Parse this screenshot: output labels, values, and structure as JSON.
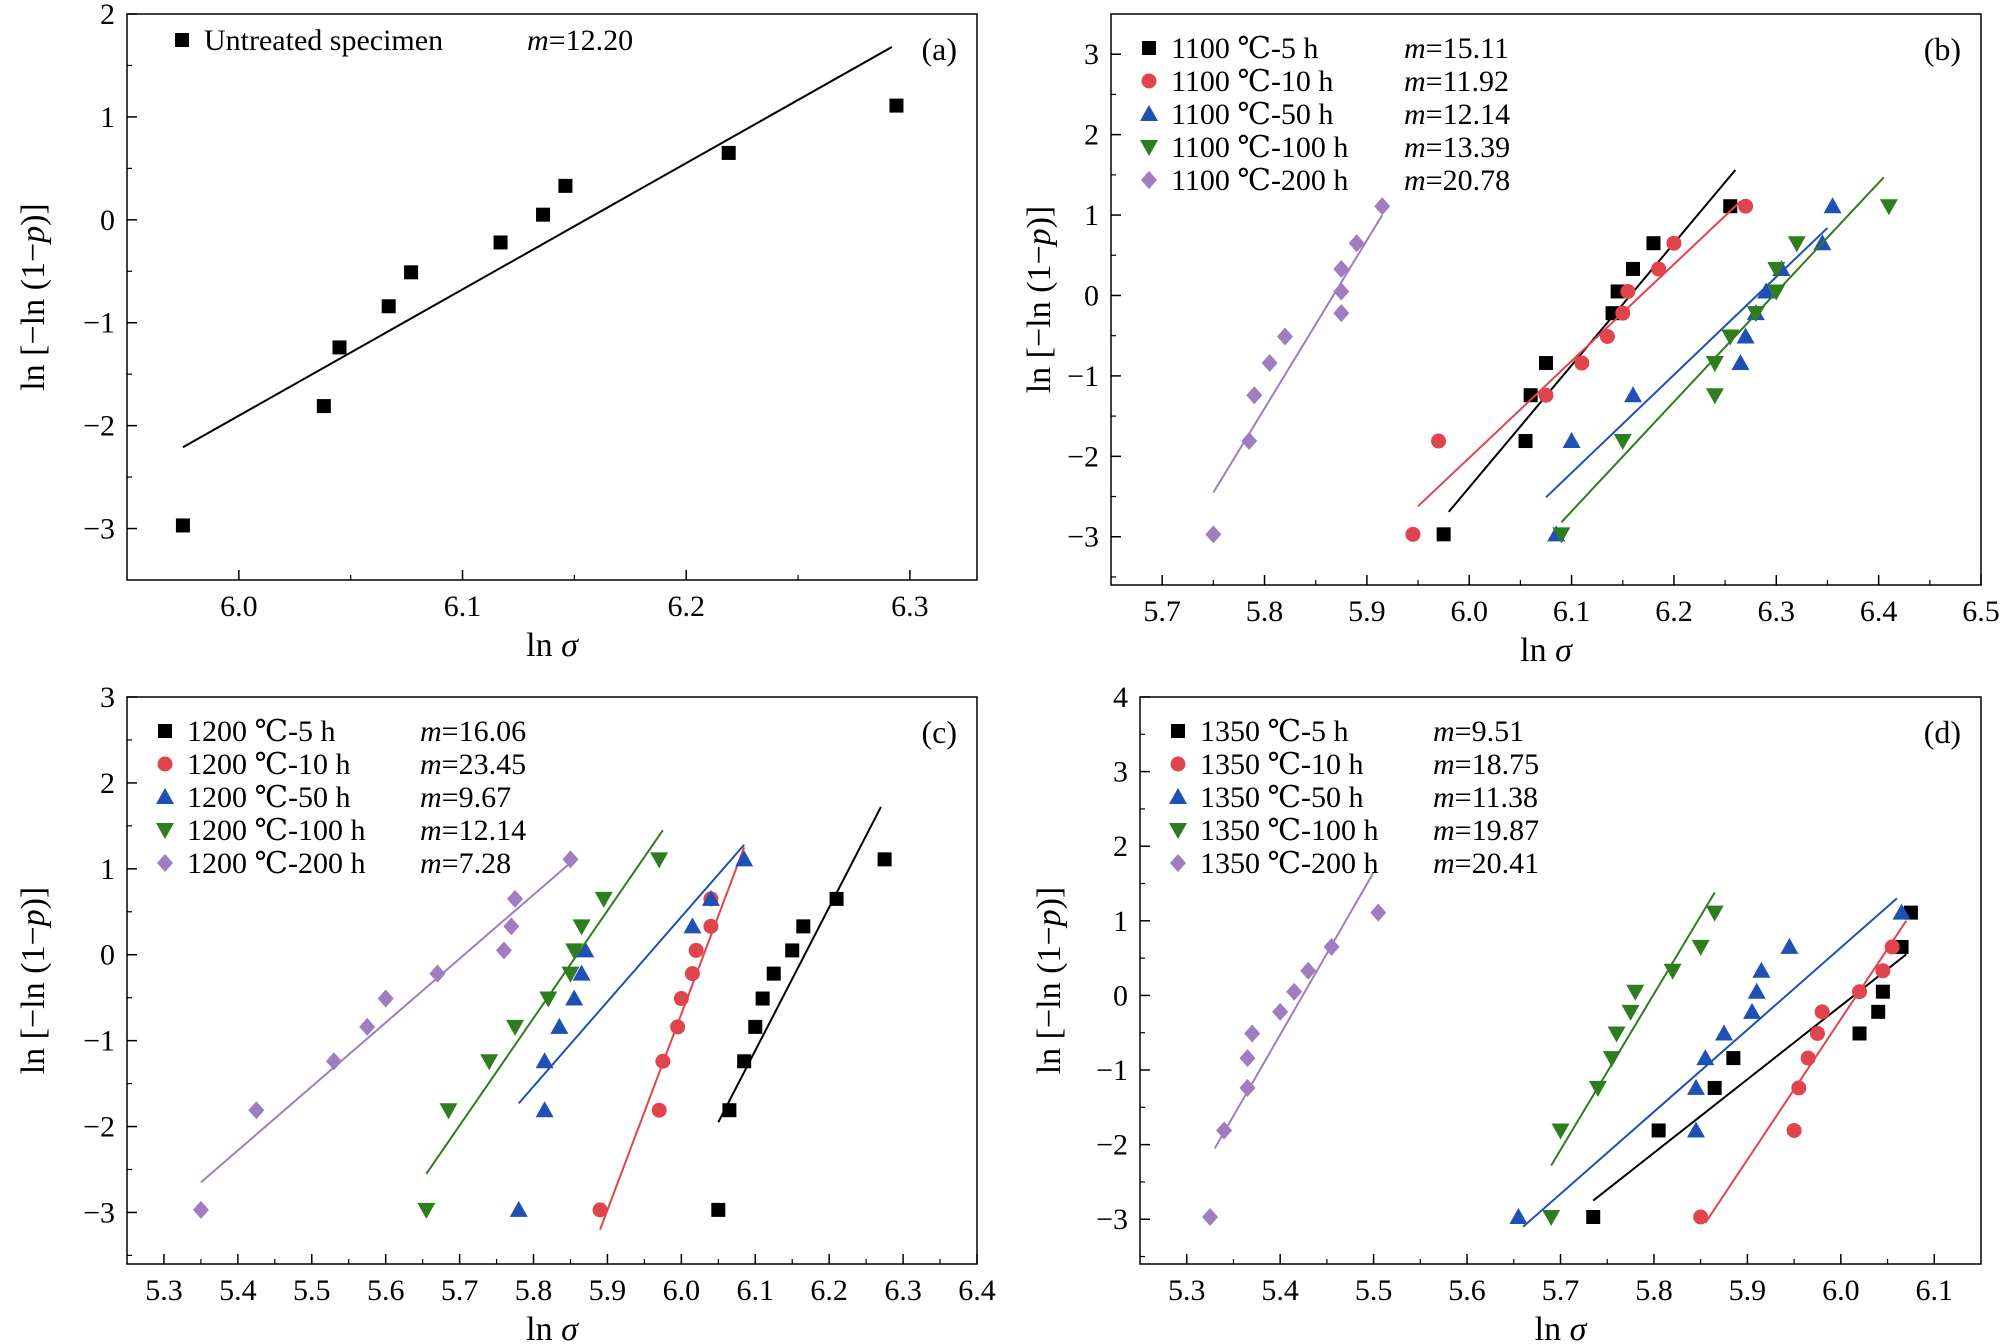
{
  "chart_data": [
    {
      "panel": "(a)",
      "type": "scatter",
      "xlabel": "ln σ",
      "ylabel": "ln [−ln (1−p)]",
      "xlim": [
        5.95,
        6.33
      ],
      "ylim": [
        -3.5,
        2
      ],
      "xticks": [
        "6.0",
        "6.1",
        "6.2",
        "6.3"
      ],
      "xtick_values": [
        6.0,
        6.1,
        6.2,
        6.3
      ],
      "yticks": [
        "−3",
        "−2",
        "−1",
        "0",
        "1",
        "2"
      ],
      "ytick_values": [
        -3,
        -2,
        -1,
        0,
        1,
        2
      ],
      "legend_position": "top-left",
      "series": [
        {
          "name": "Untreated specimen",
          "m_label": "m",
          "m_value": "=12.20",
          "color": "#000000",
          "marker": "square",
          "x": [
            5.975,
            6.038,
            6.045,
            6.067,
            6.077,
            6.117,
            6.136,
            6.146,
            6.219,
            6.294
          ],
          "y": [
            -2.97,
            -1.81,
            -1.24,
            -0.84,
            -0.51,
            -0.22,
            0.05,
            0.33,
            0.65,
            1.11
          ],
          "fit": [
            [
              5.975,
              -2.21
            ],
            [
              6.292,
              1.68
            ]
          ]
        }
      ]
    },
    {
      "panel": "(b)",
      "type": "scatter",
      "xlabel": "ln σ",
      "ylabel": "ln [−ln (1−p)]",
      "xlim": [
        5.65,
        6.5
      ],
      "ylim": [
        -3.6,
        3.5
      ],
      "xticks": [
        "5.7",
        "5.8",
        "5.9",
        "6.0",
        "6.1",
        "6.2",
        "6.3",
        "6.4",
        "6.5"
      ],
      "xtick_values": [
        5.7,
        5.8,
        5.9,
        6.0,
        6.1,
        6.2,
        6.3,
        6.4,
        6.5
      ],
      "yticks": [
        "−3",
        "−2",
        "−1",
        "0",
        "1",
        "2",
        "3"
      ],
      "ytick_values": [
        -3,
        -2,
        -1,
        0,
        1,
        2,
        3
      ],
      "legend_position": "top-left",
      "series": [
        {
          "name": "1100 ℃-5 h",
          "m_label": "m",
          "m_value": "=15.11",
          "color": "#000000",
          "marker": "square",
          "x": [
            5.975,
            6.055,
            6.06,
            6.075,
            6.14,
            6.145,
            6.16,
            6.18,
            6.255
          ],
          "y": [
            -2.97,
            -1.81,
            -1.24,
            -0.84,
            -0.22,
            0.05,
            0.33,
            0.65,
            1.11
          ],
          "fit": [
            [
              5.98,
              -2.69
            ],
            [
              6.26,
              1.56
            ]
          ]
        },
        {
          "name": "1100 ℃-10 h",
          "m_label": "m",
          "m_value": "=11.92",
          "color": "#e0444c",
          "marker": "circle",
          "x": [
            5.945,
            5.97,
            6.075,
            6.11,
            6.135,
            6.15,
            6.155,
            6.185,
            6.2,
            6.27
          ],
          "y": [
            -2.97,
            -1.81,
            -1.24,
            -0.84,
            -0.51,
            -0.22,
            0.05,
            0.33,
            0.65,
            1.11
          ],
          "fit": [
            [
              5.95,
              -2.62
            ],
            [
              6.265,
              1.17
            ]
          ]
        },
        {
          "name": "1100 ℃-50 h",
          "m_label": "m",
          "m_value": "=12.14",
          "color": "#1f50b4",
          "marker": "triangle-up",
          "x": [
            6.085,
            6.1,
            6.16,
            6.265,
            6.27,
            6.28,
            6.29,
            6.305,
            6.345,
            6.355
          ],
          "y": [
            -2.97,
            -1.81,
            -1.24,
            -0.84,
            -0.51,
            -0.22,
            0.05,
            0.33,
            0.65,
            1.11
          ],
          "fit": [
            [
              6.075,
              -2.51
            ],
            [
              6.35,
              0.84
            ]
          ]
        },
        {
          "name": "1100 ℃-100 h",
          "m_label": "m",
          "m_value": "=13.39",
          "color": "#2e7d1f",
          "marker": "triangle-down",
          "x": [
            6.09,
            6.15,
            6.24,
            6.24,
            6.255,
            6.28,
            6.3,
            6.3,
            6.32,
            6.41
          ],
          "y": [
            -2.97,
            -1.81,
            -1.24,
            -0.84,
            -0.51,
            -0.22,
            0.05,
            0.33,
            0.65,
            1.11
          ],
          "fit": [
            [
              6.09,
              -2.82
            ],
            [
              6.405,
              1.47
            ]
          ]
        },
        {
          "name": "1100 ℃-200 h",
          "m_label": "m",
          "m_value": "=20.78",
          "color": "#a07cc0",
          "marker": "diamond",
          "x": [
            5.75,
            5.785,
            5.79,
            5.805,
            5.82,
            5.875,
            5.875,
            5.875,
            5.89,
            5.915
          ],
          "y": [
            -2.97,
            -1.81,
            -1.24,
            -0.84,
            -0.51,
            -0.22,
            0.05,
            0.33,
            0.65,
            1.11
          ],
          "fit": [
            [
              5.75,
              -2.45
            ],
            [
              5.915,
              1.0
            ]
          ]
        }
      ]
    },
    {
      "panel": "(c)",
      "type": "scatter",
      "xlabel": "ln σ",
      "ylabel": "ln [−ln (1−p)]",
      "xlim": [
        5.25,
        6.4
      ],
      "ylim": [
        -3.6,
        3
      ],
      "xticks": [
        "5.3",
        "5.4",
        "5.5",
        "5.6",
        "5.7",
        "5.8",
        "5.9",
        "6.0",
        "6.1",
        "6.2",
        "6.3",
        "6.4"
      ],
      "xtick_values": [
        5.3,
        5.4,
        5.5,
        5.6,
        5.7,
        5.8,
        5.9,
        6.0,
        6.1,
        6.2,
        6.3,
        6.4
      ],
      "yticks": [
        "−3",
        "−2",
        "−1",
        "0",
        "1",
        "2",
        "3"
      ],
      "ytick_values": [
        -3,
        -2,
        -1,
        0,
        1,
        2,
        3
      ],
      "legend_position": "top-left",
      "series": [
        {
          "name": "1200 ℃-5 h",
          "m_label": "m",
          "m_value": "=16.06",
          "color": "#000000",
          "marker": "square",
          "x": [
            6.05,
            6.065,
            6.085,
            6.1,
            6.11,
            6.125,
            6.15,
            6.165,
            6.21,
            6.275
          ],
          "y": [
            -2.97,
            -1.81,
            -1.24,
            -0.84,
            -0.51,
            -0.22,
            0.05,
            0.33,
            0.65,
            1.11
          ],
          "fit": [
            [
              6.05,
              -1.95
            ],
            [
              6.27,
              1.72
            ]
          ]
        },
        {
          "name": "1200 ℃-10 h",
          "m_label": "m",
          "m_value": "=23.45",
          "color": "#e0444c",
          "marker": "circle",
          "x": [
            5.89,
            5.97,
            5.975,
            5.995,
            6.0,
            6.015,
            6.02,
            6.04,
            6.04
          ],
          "y": [
            -2.97,
            -1.81,
            -1.24,
            -0.84,
            -0.51,
            -0.22,
            0.05,
            0.33,
            0.65
          ],
          "fit": [
            [
              5.89,
              -3.2
            ],
            [
              6.085,
              1.25
            ]
          ]
        },
        {
          "name": "1200 ℃-50 h",
          "m_label": "m",
          "m_value": "=9.67",
          "color": "#1f50b4",
          "marker": "triangle-up",
          "x": [
            5.78,
            5.815,
            5.815,
            5.835,
            5.855,
            5.865,
            5.87,
            6.015,
            6.04,
            6.085
          ],
          "y": [
            -2.97,
            -1.81,
            -1.24,
            -0.84,
            -0.51,
            -0.22,
            0.05,
            0.33,
            0.65,
            1.11
          ],
          "fit": [
            [
              5.78,
              -1.73
            ],
            [
              6.085,
              1.28
            ]
          ]
        },
        {
          "name": "1200 ℃-100 h",
          "m_label": "m",
          "m_value": "=12.14",
          "color": "#2e7d1f",
          "marker": "triangle-down",
          "x": [
            5.655,
            5.685,
            5.74,
            5.775,
            5.82,
            5.85,
            5.855,
            5.865,
            5.895,
            5.97
          ],
          "y": [
            -2.97,
            -1.81,
            -1.24,
            -0.84,
            -0.51,
            -0.22,
            0.05,
            0.33,
            0.65,
            1.11
          ],
          "fit": [
            [
              5.655,
              -2.55
            ],
            [
              5.975,
              1.45
            ]
          ]
        },
        {
          "name": "1200 ℃-200 h",
          "m_label": "m",
          "m_value": "=7.28",
          "color": "#a07cc0",
          "marker": "diamond",
          "x": [
            5.35,
            5.425,
            5.53,
            5.575,
            5.6,
            5.67,
            5.76,
            5.77,
            5.775,
            5.85
          ],
          "y": [
            -2.97,
            -1.81,
            -1.24,
            -0.84,
            -0.51,
            -0.22,
            0.05,
            0.33,
            0.65,
            1.11
          ],
          "fit": [
            [
              5.35,
              -2.65
            ],
            [
              5.85,
              1.07
            ]
          ]
        }
      ]
    },
    {
      "panel": "(d)",
      "type": "scatter",
      "xlabel": "ln σ",
      "ylabel": "ln [−ln (1−p)]",
      "xlim": [
        5.25,
        6.15
      ],
      "ylim": [
        -3.6,
        4
      ],
      "xticks": [
        "5.3",
        "5.4",
        "5.5",
        "5.6",
        "5.7",
        "5.8",
        "5.9",
        "6.0",
        "6.1"
      ],
      "xtick_values": [
        5.3,
        5.4,
        5.5,
        5.6,
        5.7,
        5.8,
        5.9,
        6.0,
        6.1
      ],
      "yticks": [
        "−3",
        "−2",
        "−1",
        "0",
        "1",
        "2",
        "3",
        "4"
      ],
      "ytick_values": [
        -3,
        -2,
        -1,
        0,
        1,
        2,
        3,
        4
      ],
      "legend_position": "top-left",
      "series": [
        {
          "name": "1350 ℃-5 h",
          "m_label": "m",
          "m_value": "=9.51",
          "color": "#000000",
          "marker": "square",
          "x": [
            5.735,
            5.805,
            5.865,
            5.885,
            6.02,
            6.04,
            6.045,
            6.065,
            6.075
          ],
          "y": [
            -2.97,
            -1.81,
            -1.24,
            -0.84,
            -0.51,
            -0.22,
            0.05,
            0.65,
            1.11
          ],
          "fit": [
            [
              5.735,
              -2.75
            ],
            [
              6.07,
              0.55
            ]
          ]
        },
        {
          "name": "1350 ℃-10 h",
          "m_label": "m",
          "m_value": "=18.75",
          "color": "#e0444c",
          "marker": "circle",
          "x": [
            5.85,
            5.95,
            5.955,
            5.965,
            5.975,
            5.98,
            6.02,
            6.045,
            6.055
          ],
          "y": [
            -2.97,
            -1.81,
            -1.24,
            -0.84,
            -0.51,
            -0.22,
            0.05,
            0.33,
            0.65
          ],
          "fit": [
            [
              5.855,
              -3.05
            ],
            [
              6.07,
              1.0
            ]
          ]
        },
        {
          "name": "1350 ℃-50 h",
          "m_label": "m",
          "m_value": "=11.38",
          "color": "#1f50b4",
          "marker": "triangle-up",
          "x": [
            5.655,
            5.845,
            5.845,
            5.855,
            5.875,
            5.905,
            5.91,
            5.915,
            5.945,
            6.065
          ],
          "y": [
            -2.97,
            -1.81,
            -1.24,
            -0.84,
            -0.51,
            -0.22,
            0.05,
            0.33,
            0.65,
            1.11
          ],
          "fit": [
            [
              5.66,
              -3.1
            ],
            [
              6.06,
              1.3
            ]
          ]
        },
        {
          "name": "1350 ℃-100 h",
          "m_label": "m",
          "m_value": "=19.87",
          "color": "#2e7d1f",
          "marker": "triangle-down",
          "x": [
            5.69,
            5.7,
            5.74,
            5.755,
            5.76,
            5.775,
            5.78,
            5.82,
            5.85,
            5.865
          ],
          "y": [
            -2.97,
            -1.81,
            -1.24,
            -0.84,
            -0.51,
            -0.22,
            0.05,
            0.33,
            0.65,
            1.11
          ],
          "fit": [
            [
              5.69,
              -2.28
            ],
            [
              5.865,
              1.38
            ]
          ]
        },
        {
          "name": "1350 ℃-200 h",
          "m_label": "m",
          "m_value": "=20.41",
          "color": "#a07cc0",
          "marker": "diamond",
          "x": [
            5.325,
            5.34,
            5.365,
            5.365,
            5.37,
            5.4,
            5.415,
            5.43,
            5.455,
            5.505
          ],
          "y": [
            -2.97,
            -1.81,
            -1.24,
            -0.84,
            -0.51,
            -0.22,
            0.05,
            0.33,
            0.65,
            1.11
          ],
          "fit": [
            [
              5.33,
              -2.05
            ],
            [
              5.5,
              1.65
            ]
          ]
        }
      ]
    }
  ]
}
